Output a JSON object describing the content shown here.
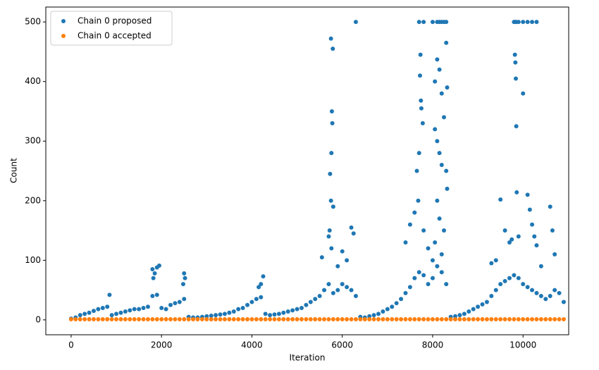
{
  "chart_data": {
    "type": "scatter",
    "xlabel": "Iteration",
    "ylabel": "Count",
    "xlim": [
      -560,
      11010
    ],
    "ylim": [
      -25,
      525
    ],
    "xticks": [
      0,
      2000,
      4000,
      6000,
      8000,
      10000
    ],
    "yticks": [
      0,
      100,
      200,
      300,
      400,
      500
    ],
    "grid": false,
    "legend": "upper left",
    "series": [
      {
        "name": "Chain 0 proposed",
        "color": "#1f77b4",
        "x": [
          0,
          100,
          200,
          300,
          400,
          500,
          600,
          700,
          800,
          900,
          1000,
          1100,
          1200,
          1300,
          1400,
          1500,
          1600,
          1700,
          1800,
          1900,
          2000,
          2100,
          2200,
          2300,
          2400,
          2500,
          2600,
          2700,
          2800,
          2900,
          3000,
          3100,
          3200,
          3300,
          3400,
          3500,
          3600,
          3700,
          3800,
          3900,
          4000,
          4100,
          4200,
          4300,
          4400,
          4500,
          4600,
          4700,
          4800,
          4900,
          5000,
          5100,
          5200,
          5300,
          5400,
          5500,
          5600,
          5700,
          5800,
          5900,
          6000,
          6100,
          6200,
          6300,
          6400,
          6500,
          6600,
          6700,
          6800,
          6900,
          7000,
          7100,
          7200,
          7300,
          7400,
          7500,
          7600,
          7700,
          7800,
          7900,
          8000,
          8100,
          8200,
          8300,
          8400,
          8500,
          8600,
          8700,
          8800,
          8900,
          9000,
          9100,
          9200,
          9300,
          9400,
          9500,
          9600,
          9700,
          9800,
          9900,
          10000,
          10100,
          10200,
          10300,
          10400,
          10500,
          10600,
          10700,
          10800,
          10900,
          850,
          1800,
          1850,
          1900,
          1950,
          1820,
          2500,
          2520,
          2480,
          4200,
          4250,
          4150,
          5550,
          5700,
          5720,
          5750,
          5760,
          5770,
          5780,
          5750,
          5790,
          5730,
          5800,
          5760,
          5900,
          6000,
          6200,
          6250,
          6300,
          6100,
          7400,
          7500,
          7600,
          7650,
          7700,
          7720,
          7730,
          7740,
          7750,
          7700,
          7800,
          7780,
          7680,
          7800,
          7900,
          8000,
          8100,
          8150,
          8200,
          8250,
          8300,
          8050,
          8100,
          8150,
          8200,
          8250,
          8300,
          8320,
          8050,
          8100,
          8150,
          8200,
          8300,
          8320,
          8100,
          8150,
          8250,
          8050,
          8200,
          8000,
          9500,
          9400,
          9600,
          9700,
          9750,
          9800,
          9820,
          9850,
          9900,
          10000,
          10100,
          10200,
          10300,
          9820,
          9830,
          9840,
          9850,
          9860,
          9900,
          10000,
          10100,
          10150,
          10200,
          10250,
          10300,
          10600,
          10650,
          10700,
          10400,
          9300
        ],
        "y": [
          2,
          4,
          8,
          10,
          12,
          15,
          18,
          20,
          22,
          8,
          10,
          12,
          14,
          16,
          18,
          18,
          20,
          22,
          40,
          42,
          20,
          18,
          25,
          28,
          30,
          35,
          5,
          4,
          4,
          5,
          6,
          7,
          8,
          9,
          10,
          12,
          14,
          18,
          20,
          25,
          30,
          35,
          38,
          10,
          8,
          9,
          10,
          12,
          14,
          16,
          18,
          20,
          25,
          30,
          35,
          40,
          50,
          60,
          45,
          50,
          60,
          55,
          50,
          40,
          5,
          4,
          6,
          8,
          10,
          14,
          18,
          22,
          28,
          35,
          45,
          55,
          70,
          80,
          75,
          60,
          70,
          90,
          80,
          60,
          5,
          6,
          8,
          10,
          14,
          18,
          22,
          26,
          30,
          40,
          50,
          60,
          65,
          70,
          75,
          70,
          60,
          55,
          50,
          45,
          40,
          35,
          40,
          50,
          45,
          30,
          42,
          85,
          78,
          88,
          91,
          70,
          78,
          70,
          60,
          60,
          73,
          55,
          105,
          140,
          150,
          200,
          280,
          350,
          330,
          472,
          455,
          245,
          190,
          120,
          90,
          115,
          155,
          145,
          500,
          100,
          130,
          160,
          180,
          250,
          280,
          410,
          445,
          368,
          355,
          500,
          500,
          330,
          200,
          150,
          120,
          500,
          500,
          500,
          500,
          500,
          500,
          400,
          437,
          420,
          380,
          340,
          465,
          390,
          320,
          300,
          280,
          260,
          250,
          220,
          200,
          170,
          150,
          130,
          110,
          100,
          202,
          100,
          150,
          130,
          135,
          500,
          500,
          500,
          500,
          500,
          500,
          500,
          500,
          445,
          432,
          405,
          325,
          214,
          140,
          380,
          210,
          185,
          160,
          140,
          125,
          190,
          150,
          110,
          90,
          95
        ]
      },
      {
        "name": "Chain 0 accepted",
        "color": "#ff7f0e",
        "x": [
          0,
          100,
          200,
          300,
          400,
          500,
          600,
          700,
          800,
          900,
          1000,
          1100,
          1200,
          1300,
          1400,
          1500,
          1600,
          1700,
          1800,
          1900,
          2000,
          2100,
          2200,
          2300,
          2400,
          2500,
          2600,
          2700,
          2800,
          2900,
          3000,
          3100,
          3200,
          3300,
          3400,
          3500,
          3600,
          3700,
          3800,
          3900,
          4000,
          4100,
          4200,
          4300,
          4400,
          4500,
          4600,
          4700,
          4800,
          4900,
          5000,
          5100,
          5200,
          5300,
          5400,
          5500,
          5600,
          5700,
          5800,
          5900,
          6000,
          6100,
          6200,
          6300,
          6400,
          6500,
          6600,
          6700,
          6800,
          6900,
          7000,
          7100,
          7200,
          7300,
          7400,
          7500,
          7600,
          7700,
          7800,
          7900,
          8000,
          8100,
          8200,
          8300,
          8400,
          8500,
          8600,
          8700,
          8800,
          8900,
          9000,
          9100,
          9200,
          9300,
          9400,
          9500,
          9600,
          9700,
          9800,
          9900,
          10000,
          10100,
          10200,
          10300,
          10400,
          10500,
          10600,
          10700,
          10800,
          10900
        ],
        "y": [
          1,
          1,
          1,
          1,
          1,
          1,
          1,
          1,
          1,
          1,
          1,
          1,
          1,
          1,
          1,
          1,
          1,
          1,
          1,
          1,
          1,
          1,
          1,
          1,
          1,
          1,
          1,
          1,
          1,
          1,
          1,
          1,
          1,
          1,
          1,
          1,
          1,
          1,
          1,
          1,
          1,
          1,
          1,
          1,
          1,
          1,
          1,
          1,
          1,
          1,
          1,
          1,
          1,
          1,
          1,
          1,
          1,
          1,
          1,
          1,
          1,
          1,
          1,
          1,
          1,
          1,
          1,
          1,
          1,
          1,
          1,
          1,
          1,
          1,
          1,
          1,
          1,
          1,
          1,
          1,
          1,
          1,
          1,
          1,
          1,
          1,
          1,
          1,
          1,
          1,
          1,
          1,
          1,
          1,
          1,
          1,
          1,
          1,
          1,
          1,
          1,
          1,
          1,
          1,
          1,
          1,
          1,
          1,
          1,
          1
        ]
      }
    ]
  }
}
